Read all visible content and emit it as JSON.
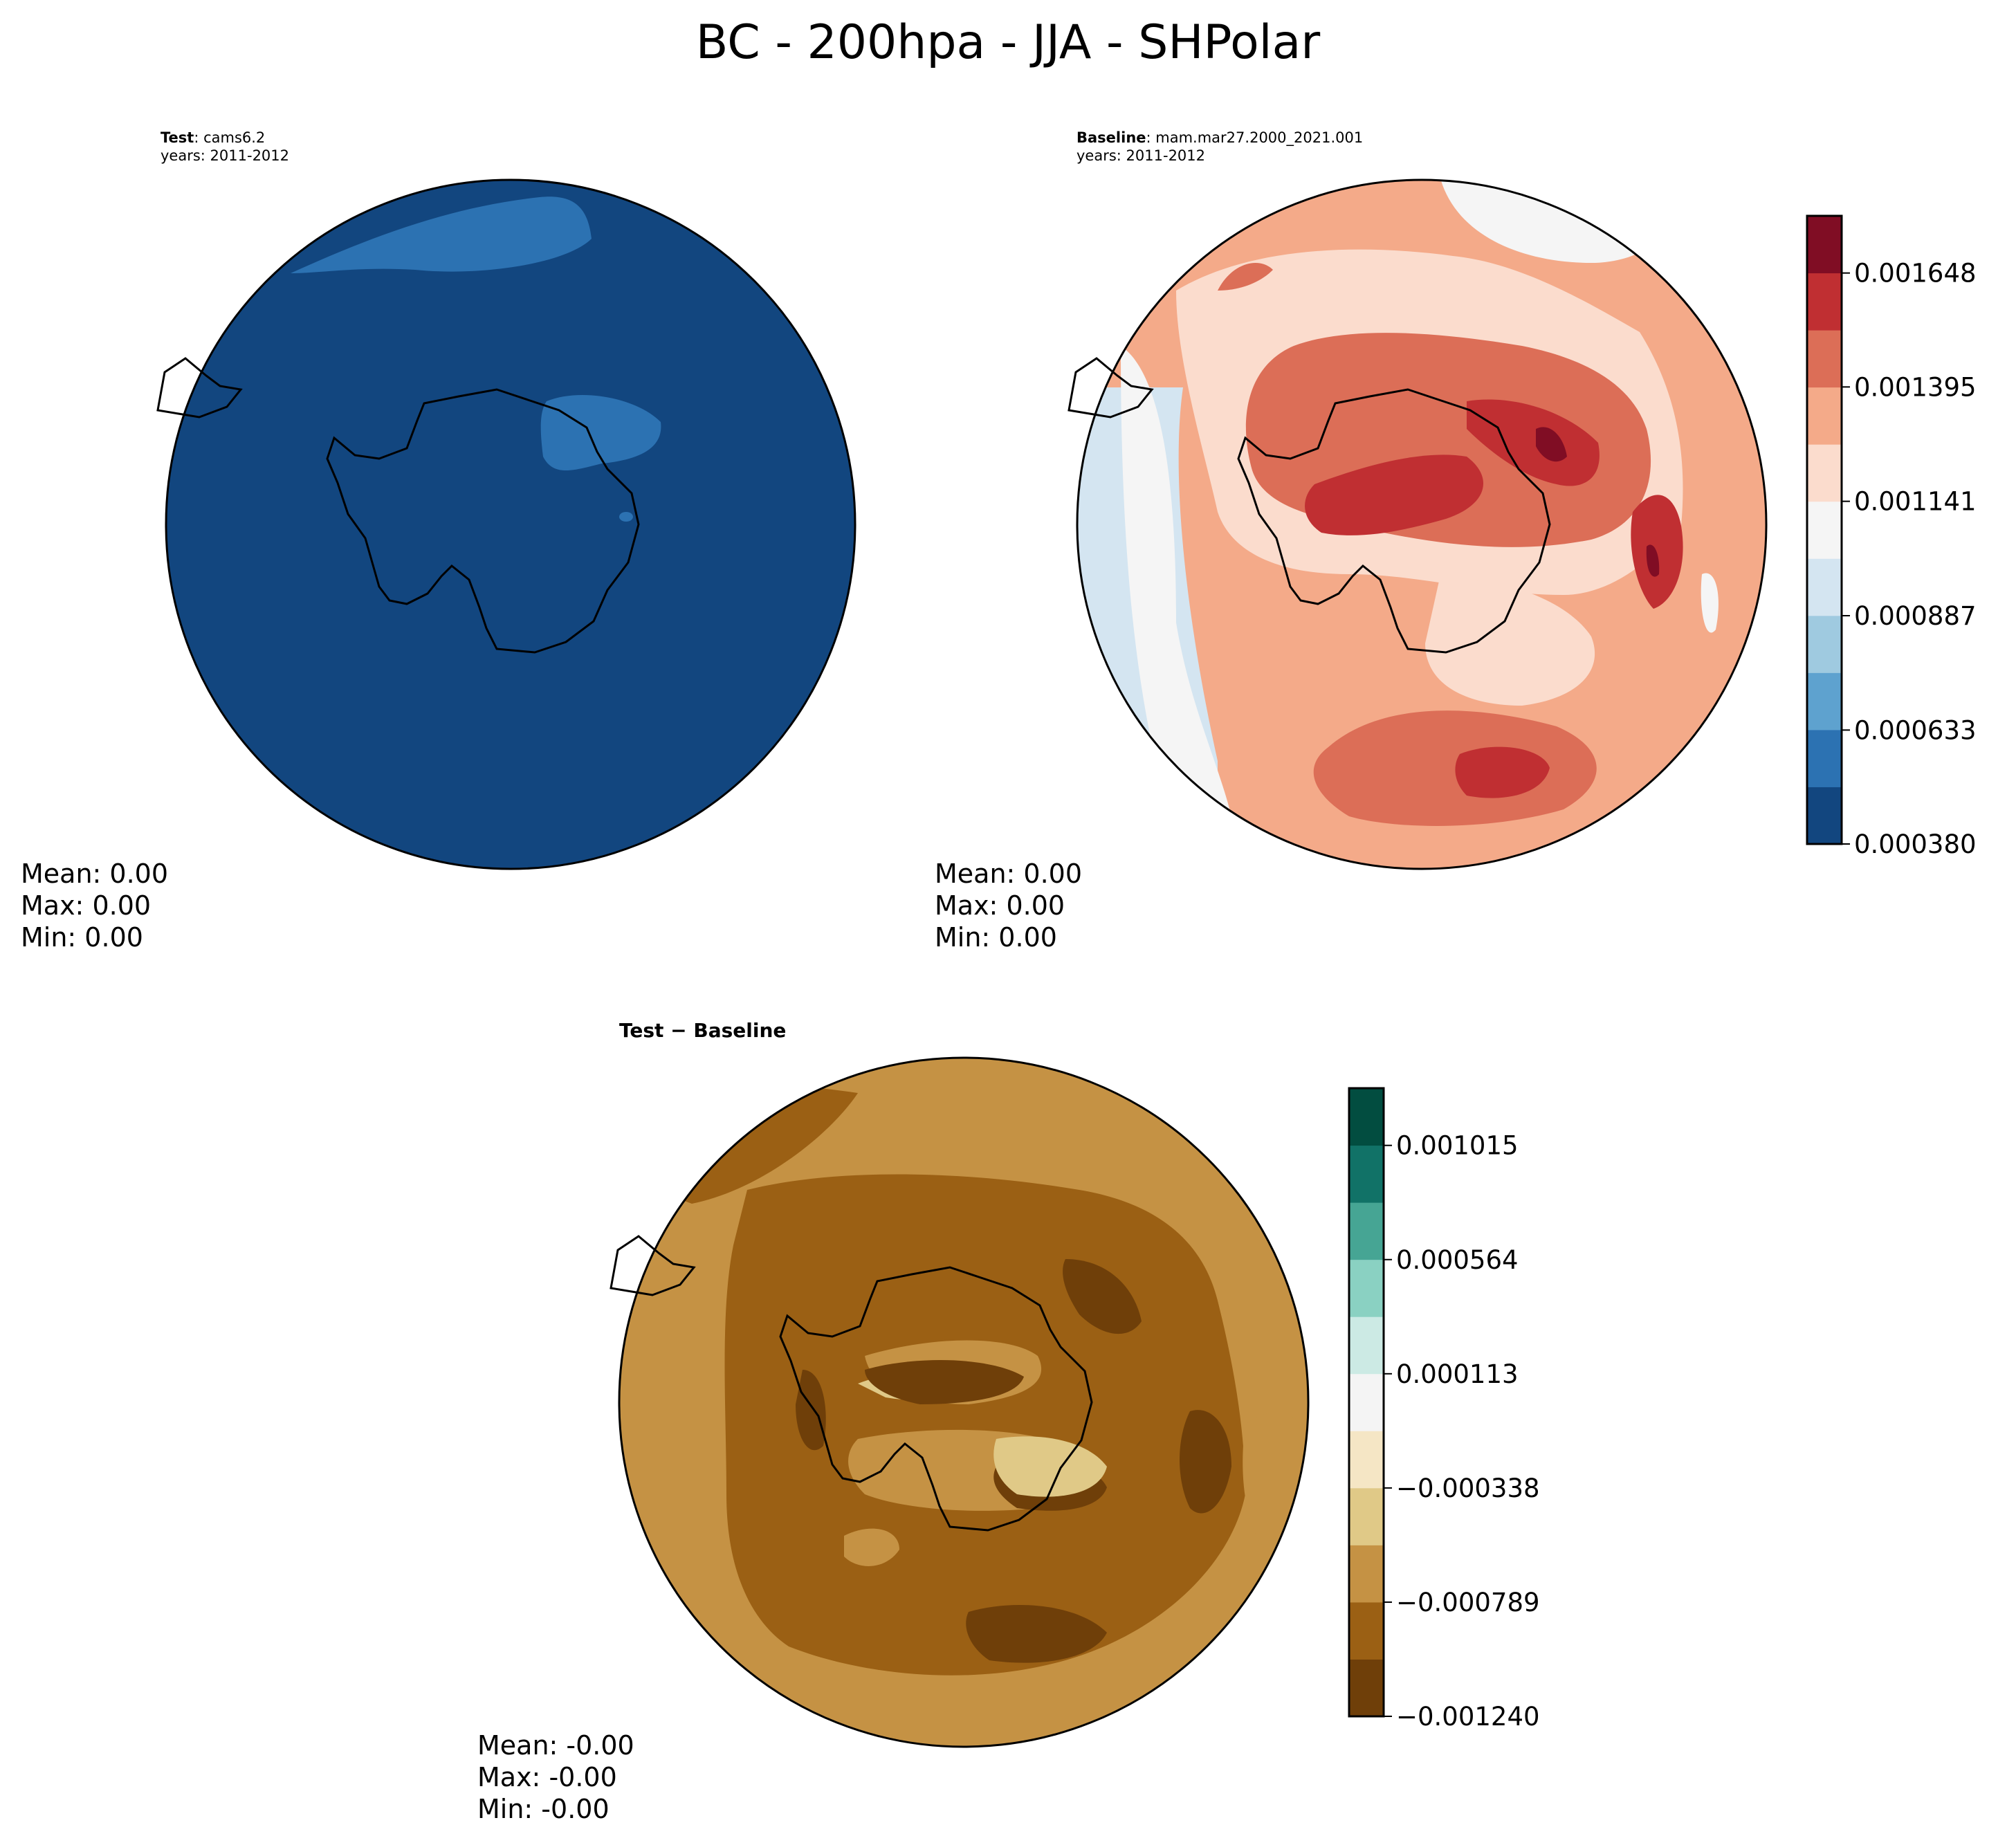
{
  "title": "BC - 200hpa - JJA - SHPolar",
  "panels": {
    "test": {
      "label": "Test",
      "case": ": cams6.2",
      "years": "years: 2011-2012",
      "mean": "Mean:  0.00",
      "max": "Max:  0.00",
      "min": "Min:  0.00"
    },
    "baseline": {
      "label": "Baseline",
      "case": ": mam.mar27.2000_2021.001",
      "years": "years: 2011-2012",
      "mean": "Mean:  0.00",
      "max": "Max:  0.00",
      "min": "Min:  0.00"
    },
    "diff": {
      "title": "Test − Baseline",
      "mean": "Mean: -0.00",
      "max": "Max: -0.00",
      "min": "Min: -0.00"
    }
  },
  "chart_data": [
    {
      "type": "heatmap",
      "name": "test-map",
      "projection": "south-polar-stereographic",
      "colorbar": "shared-with-baseline",
      "dominant_level": "0.000380 - 0.000507",
      "colors": {
        "background_fill": "#12467f",
        "patch_fill": "#2c72b2"
      }
    },
    {
      "type": "heatmap",
      "name": "baseline-map",
      "projection": "south-polar-stereographic",
      "colorbar": {
        "range": [
          0.00038,
          0.001775
        ],
        "ticks": [
          "0.000380",
          "0.000633",
          "0.000887",
          "0.001141",
          "0.001395",
          "0.001648"
        ],
        "tick_values": [
          0.00038,
          0.000633,
          0.000887,
          0.001141,
          0.001395,
          0.001648
        ],
        "level_colors": [
          "#12467f",
          "#2c72b2",
          "#5ea2cf",
          "#9fcae0",
          "#d4e5f1",
          "#f5f5f5",
          "#fbdccd",
          "#f4aa89",
          "#dc6e57",
          "#c02f32",
          "#800d24"
        ],
        "placement": "right"
      }
    },
    {
      "type": "heatmap",
      "name": "difference-map",
      "projection": "south-polar-stereographic",
      "colorbar": {
        "range": [
          -0.00124,
          0.001241
        ],
        "ticks": [
          "−0.001240",
          "−0.000789",
          "−0.000338",
          "0.000113",
          "0.000564",
          "0.001015"
        ],
        "tick_values": [
          -0.00124,
          -0.000789,
          -0.000338,
          0.000113,
          0.000564,
          0.001015
        ],
        "level_colors": [
          "#6f3f09",
          "#9b6014",
          "#c59244",
          "#e0c987",
          "#f5e6c5",
          "#f4f4f4",
          "#cceae4",
          "#8ad1c2",
          "#46a594",
          "#117267",
          "#024d40"
        ],
        "placement": "right"
      }
    }
  ]
}
